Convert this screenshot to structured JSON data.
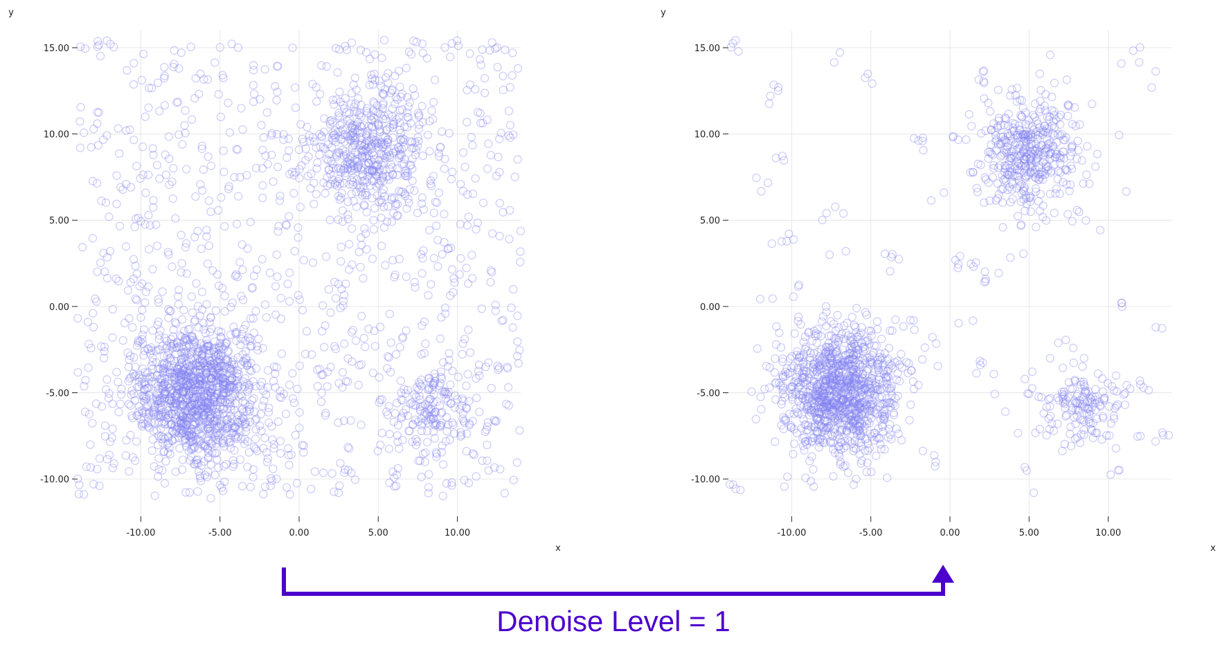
{
  "colors": {
    "point": "#8080f2",
    "grid": "#e6e6e6",
    "arrow": "#4c00cc"
  },
  "caption": "Denoise Level = 1",
  "chart_data": [
    {
      "type": "scatter",
      "xlabel": "x",
      "ylabel": "y",
      "xlim": [
        -14,
        14
      ],
      "ylim": [
        -12,
        16
      ],
      "x_ticks": [
        -10,
        -5,
        0,
        5,
        10
      ],
      "y_ticks": [
        15,
        10,
        5,
        0,
        -5,
        -10
      ],
      "x_tick_labels": [
        "-10.00",
        "-5.00",
        "0.00",
        "5.00",
        "10.00"
      ],
      "y_tick_labels": [
        "15.00",
        "10.00",
        "5.00",
        "0.00",
        "-5.00",
        "-10.00"
      ],
      "marker": "hollow-circle",
      "clusters": [
        {
          "center": [
            -6.5,
            -5.0
          ],
          "spread": 2.0,
          "count": 1100
        },
        {
          "center": [
            4.5,
            9.0
          ],
          "spread": 1.8,
          "count": 450
        },
        {
          "center": [
            8.5,
            -6.0
          ],
          "spread": 1.4,
          "count": 160
        }
      ],
      "uniform_noise": {
        "x_range": [
          -14,
          14
        ],
        "y_range": [
          -11,
          15.5
        ],
        "count": 900
      }
    },
    {
      "type": "scatter",
      "xlabel": "x",
      "ylabel": "y",
      "xlim": [
        -14,
        14
      ],
      "ylim": [
        -12,
        16
      ],
      "x_ticks": [
        -10,
        -5,
        0,
        5,
        10
      ],
      "y_ticks": [
        15,
        10,
        5,
        0,
        -5,
        -10
      ],
      "x_tick_labels": [
        "-10.00",
        "-5.00",
        "0.00",
        "5.00",
        "10.00"
      ],
      "y_tick_labels": [
        "15.00",
        "10.00",
        "5.00",
        "0.00",
        "-5.00",
        "-10.00"
      ],
      "marker": "hollow-circle",
      "clusters": [
        {
          "center": [
            -7.0,
            -5.0
          ],
          "spread": 1.9,
          "count": 1050
        },
        {
          "center": [
            5.0,
            9.0
          ],
          "spread": 1.7,
          "count": 420
        },
        {
          "center": [
            8.5,
            -5.8
          ],
          "spread": 1.3,
          "count": 150
        }
      ],
      "uniform_noise": {
        "x_range": [
          -14,
          14
        ],
        "y_range": [
          -11,
          15.5
        ],
        "count": 0
      },
      "small_groups": [
        [
          -14.0,
          15.2
        ],
        [
          -11.0,
          12.5
        ],
        [
          -10.5,
          9.0
        ],
        [
          -12.5,
          7.3
        ],
        [
          -10.3,
          3.8
        ],
        [
          -7.5,
          14.3
        ],
        [
          -5.0,
          13.5
        ],
        [
          -7.7,
          5.5
        ],
        [
          -7.0,
          3.0
        ],
        [
          -4.0,
          3.0
        ],
        [
          -10.0,
          1.0
        ],
        [
          -2.0,
          10.0
        ],
        [
          -1.0,
          6.3
        ],
        [
          0.3,
          9.5
        ],
        [
          2.0,
          13.3
        ],
        [
          1.5,
          7.5
        ],
        [
          -3.5,
          2.3
        ],
        [
          0.5,
          2.5
        ],
        [
          1.5,
          2.0
        ],
        [
          2.5,
          1.5
        ],
        [
          4.2,
          2.9
        ],
        [
          -1.0,
          -1.5
        ],
        [
          0.8,
          -0.7
        ],
        [
          2.0,
          -3.8
        ],
        [
          2.8,
          -5.6
        ],
        [
          5.0,
          -4.9
        ],
        [
          7.0,
          -1.9
        ],
        [
          5.0,
          -8.3
        ],
        [
          5.0,
          -10.8
        ],
        [
          -13.5,
          -10.2
        ],
        [
          -1.5,
          -8.5
        ],
        [
          13.0,
          12.5
        ],
        [
          11.0,
          0.2
        ],
        [
          13.5,
          -1.5
        ],
        [
          12.5,
          -5.0
        ],
        [
          13.5,
          -7.8
        ],
        [
          11.0,
          -4.8
        ],
        [
          10.5,
          -9.2
        ],
        [
          -2.5,
          -1.0
        ],
        [
          11.5,
          14.5
        ]
      ]
    }
  ]
}
